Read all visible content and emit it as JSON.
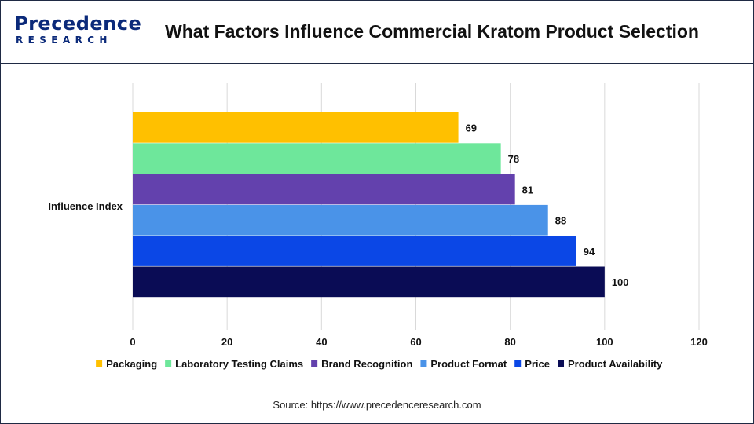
{
  "logo": {
    "line1": "Precedence",
    "line2": "RESEARCH"
  },
  "title": "What Factors Influence Commercial Kratom Product Selection",
  "source": "Source: https://www.precedenceresearch.com",
  "chart_data": {
    "type": "bar",
    "orientation": "horizontal",
    "categories": [
      "Influence Index"
    ],
    "series": [
      {
        "name": "Packaging",
        "values": [
          69
        ],
        "color": "#ffc000"
      },
      {
        "name": "Laboratory Testing Claims",
        "values": [
          78
        ],
        "color": "#6ee79b"
      },
      {
        "name": "Brand Recognition",
        "values": [
          81
        ],
        "color": "#6341ad"
      },
      {
        "name": "Product Format",
        "values": [
          88
        ],
        "color": "#4a93e8"
      },
      {
        "name": "Price",
        "values": [
          94
        ],
        "color": "#0b47e6"
      },
      {
        "name": "Product Availability",
        "values": [
          100
        ],
        "color": "#0a0c55"
      }
    ],
    "xlim": [
      0,
      120
    ],
    "x_ticks": [
      "0",
      "20",
      "40",
      "60",
      "80",
      "100",
      "120"
    ],
    "grid": "vertical",
    "data_labels": true,
    "legend": "bottom"
  }
}
